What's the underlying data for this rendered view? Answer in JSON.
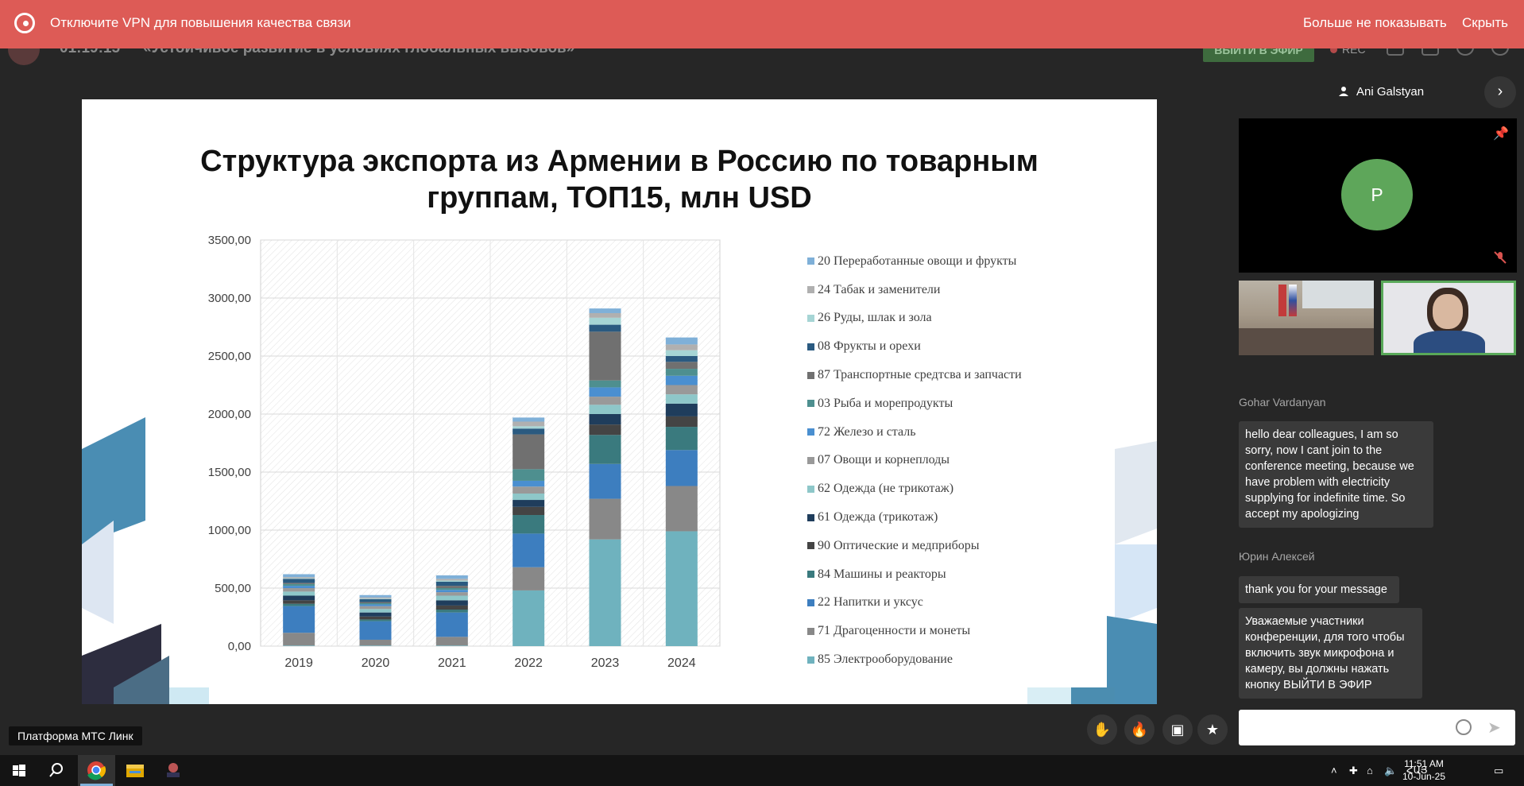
{
  "banner": {
    "text": "Отключите VPN для повышения качества связи",
    "dont_show": "Больше не показывать",
    "hide": "Скрыть"
  },
  "header": {
    "timer": "01:19:15",
    "title": "«Устойчивое развитие в условиях глобальных вызовов»",
    "go_live": "ВЫЙТИ В ЭФИР",
    "rec": "REC"
  },
  "slide": {
    "title_line1": "Структура экспорта из Армении в Россию по товарным",
    "title_line2": "группам, ТОП15, млн USD"
  },
  "chart_data": {
    "type": "bar",
    "stacked": true,
    "categories": [
      "2019",
      "2020",
      "2021",
      "2022",
      "2023",
      "2024"
    ],
    "ylim": [
      0,
      3500
    ],
    "yticks": [
      "0,00",
      "500,00",
      "1000,00",
      "1500,00",
      "2000,00",
      "2500,00",
      "3000,00",
      "3500,00"
    ],
    "grid": true,
    "legend_position": "right",
    "series": [
      {
        "name": "85 Электрооборудование",
        "color": "#6fb2be",
        "values": [
          5,
          5,
          5,
          480,
          920,
          990
        ]
      },
      {
        "name": "71 Драгоценности и монеты",
        "color": "#888888",
        "values": [
          110,
          50,
          75,
          200,
          350,
          390
        ]
      },
      {
        "name": "22 Напитки и уксус",
        "color": "#3d7ebf",
        "values": [
          230,
          160,
          210,
          290,
          300,
          310
        ]
      },
      {
        "name": "84 Машины и реакторы",
        "color": "#3a7a7e",
        "values": [
          20,
          15,
          25,
          160,
          250,
          200
        ]
      },
      {
        "name": "90 Оптические и медприборы",
        "color": "#444444",
        "values": [
          30,
          25,
          35,
          70,
          90,
          90
        ]
      },
      {
        "name": "61 Одежда (трикотаж)",
        "color": "#1f3d5c",
        "values": [
          40,
          35,
          45,
          60,
          90,
          110
        ]
      },
      {
        "name": "62 Одежда (не трикотаж)",
        "color": "#8ec7c9",
        "values": [
          35,
          30,
          40,
          55,
          80,
          80
        ]
      },
      {
        "name": "07 Овощи и корнеплоды",
        "color": "#999999",
        "values": [
          30,
          25,
          30,
          60,
          70,
          80
        ]
      },
      {
        "name": "72 Железо и сталь",
        "color": "#4a8fd0",
        "values": [
          20,
          15,
          20,
          50,
          80,
          80
        ]
      },
      {
        "name": "03 Рыба и морепродукты",
        "color": "#4e8f8f",
        "values": [
          15,
          10,
          15,
          100,
          60,
          60
        ]
      },
      {
        "name": "87 Транспортные средтсва и запчасти",
        "color": "#707070",
        "values": [
          10,
          10,
          20,
          300,
          420,
          60
        ]
      },
      {
        "name": "08 Фрукты и орехи",
        "color": "#2a5a80",
        "values": [
          35,
          25,
          35,
          50,
          60,
          50
        ]
      },
      {
        "name": "26 Руды, шлак и зола",
        "color": "#a6d5d5",
        "values": [
          5,
          5,
          10,
          20,
          60,
          50
        ]
      },
      {
        "name": "24 Табак и заменители",
        "color": "#b0b0b0",
        "values": [
          10,
          10,
          15,
          40,
          40,
          50
        ]
      },
      {
        "name": "20 Переработанные овощи и фрукты",
        "color": "#7fb0d8",
        "values": [
          25,
          20,
          30,
          35,
          40,
          60
        ]
      }
    ]
  },
  "right_panel": {
    "speaker": "Ani Galstyan",
    "avatar_letter": "P",
    "messages": [
      {
        "author": "Gohar Vardanyan",
        "lines": [
          "hello dear colleagues, I am so",
          "sorry, now I cant join to the",
          "conference meeting, because we",
          "have problem with electricity",
          "supplying for indefinite time. So",
          "accept my apologizing"
        ]
      },
      {
        "author": "Юрин Алексей",
        "lines": [
          "thank you for your message"
        ]
      },
      {
        "author": "",
        "lines": [
          "Уважаемые участники",
          "конференции,  для того чтобы",
          "включить звук микрофона и",
          "камеру, вы должны нажать",
          "кнопку ВЫЙТИ В ЭФИР"
        ]
      }
    ]
  },
  "bottom": {
    "platform": "Платформа МТС Линк"
  },
  "taskbar": {
    "time": "11:51 AM",
    "date": "10-Jun-25",
    "lang": "ՀԱՅ"
  }
}
